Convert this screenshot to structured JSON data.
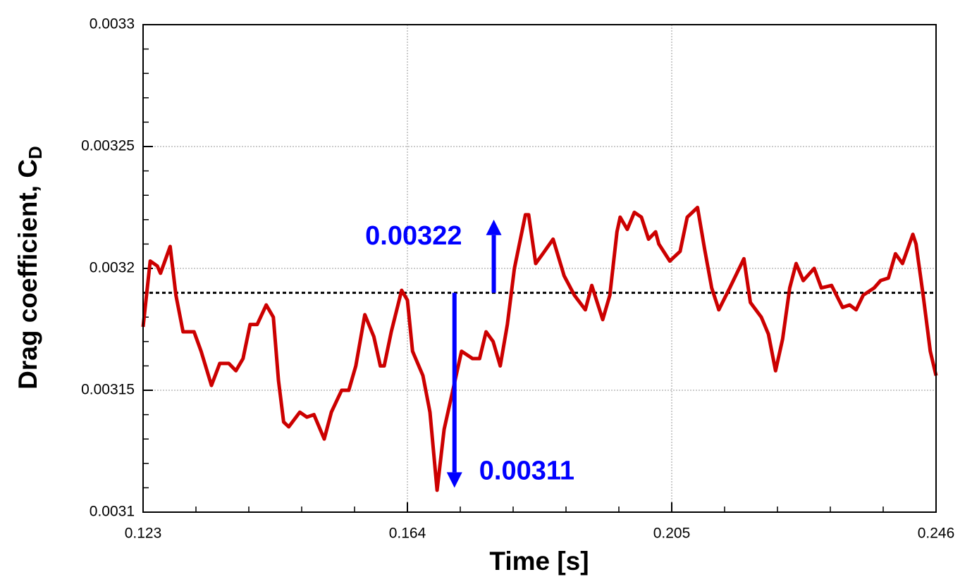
{
  "chart_data": {
    "type": "line",
    "x_label": "Time [s]",
    "y_label": "Drag coefficient, C",
    "y_label_subscript": "D",
    "xlim": [
      0.123,
      0.246
    ],
    "xticks": [
      0.123,
      0.164,
      0.205,
      0.246
    ],
    "ylim": [
      0.0031,
      0.0033
    ],
    "yticks": [
      0.0031,
      0.00315,
      0.0032,
      0.00325,
      0.0033
    ],
    "minor_divisions": 5,
    "grid": true,
    "mean_line": 0.00319,
    "annotations": [
      {
        "x": 0.1774,
        "value": 0.00322,
        "color": "#0000ff"
      },
      {
        "x": 0.1713,
        "value": 0.00311,
        "color": "#0000ff"
      }
    ],
    "series": [
      {
        "color": "#cc0000",
        "x": [
          0.123,
          0.1241,
          0.1252,
          0.1257,
          0.1272,
          0.1281,
          0.1292,
          0.1309,
          0.132,
          0.1336,
          0.1349,
          0.1363,
          0.1374,
          0.1385,
          0.1396,
          0.1407,
          0.1421,
          0.1432,
          0.144,
          0.1448,
          0.1456,
          0.1473,
          0.1484,
          0.1495,
          0.1511,
          0.1522,
          0.1538,
          0.1549,
          0.156,
          0.1574,
          0.1588,
          0.1598,
          0.1604,
          0.1615,
          0.1631,
          0.164,
          0.1648,
          0.1664,
          0.1675,
          0.1686,
          0.1697,
          0.1713,
          0.1724,
          0.1741,
          0.1752,
          0.1762,
          0.1773,
          0.1784,
          0.1795,
          0.1806,
          0.1823,
          0.1828,
          0.1839,
          0.185,
          0.1866,
          0.1883,
          0.1899,
          0.1916,
          0.1926,
          0.1943,
          0.1954,
          0.1965,
          0.197,
          0.1981,
          0.1992,
          0.2003,
          0.2014,
          0.2025,
          0.203,
          0.2047,
          0.2063,
          0.2074,
          0.209,
          0.2101,
          0.2112,
          0.2123,
          0.214,
          0.2162,
          0.2172,
          0.2189,
          0.22,
          0.2211,
          0.2222,
          0.2233,
          0.2243,
          0.2254,
          0.2271,
          0.2282,
          0.2298,
          0.2315,
          0.2326,
          0.2336,
          0.2347,
          0.2364,
          0.2374,
          0.2386,
          0.2397,
          0.2408,
          0.2424,
          0.2429,
          0.244,
          0.2451,
          0.246
        ],
        "values": [
          0.003176,
          0.003203,
          0.003201,
          0.003198,
          0.003209,
          0.003189,
          0.003174,
          0.003174,
          0.003166,
          0.003152,
          0.003161,
          0.003161,
          0.003158,
          0.003163,
          0.003177,
          0.003177,
          0.003185,
          0.00318,
          0.003154,
          0.003137,
          0.003135,
          0.003141,
          0.003139,
          0.00314,
          0.00313,
          0.003141,
          0.00315,
          0.00315,
          0.00316,
          0.003181,
          0.003172,
          0.00316,
          0.00316,
          0.003174,
          0.003191,
          0.003187,
          0.003166,
          0.003156,
          0.003141,
          0.003109,
          0.003134,
          0.003153,
          0.003166,
          0.003163,
          0.003163,
          0.003174,
          0.00317,
          0.00316,
          0.003177,
          0.0032,
          0.003222,
          0.003222,
          0.003202,
          0.003206,
          0.003212,
          0.003197,
          0.003189,
          0.003183,
          0.003193,
          0.003179,
          0.003189,
          0.003215,
          0.003221,
          0.003216,
          0.003223,
          0.003221,
          0.003212,
          0.003215,
          0.00321,
          0.003203,
          0.003207,
          0.003221,
          0.003225,
          0.003208,
          0.003192,
          0.003183,
          0.003192,
          0.003204,
          0.003186,
          0.00318,
          0.003173,
          0.003158,
          0.003171,
          0.003192,
          0.003202,
          0.003195,
          0.0032,
          0.003192,
          0.003193,
          0.003184,
          0.003185,
          0.003183,
          0.003189,
          0.003192,
          0.003195,
          0.003196,
          0.003206,
          0.003202,
          0.003214,
          0.00321,
          0.003189,
          0.003166,
          0.003156
        ]
      }
    ]
  }
}
